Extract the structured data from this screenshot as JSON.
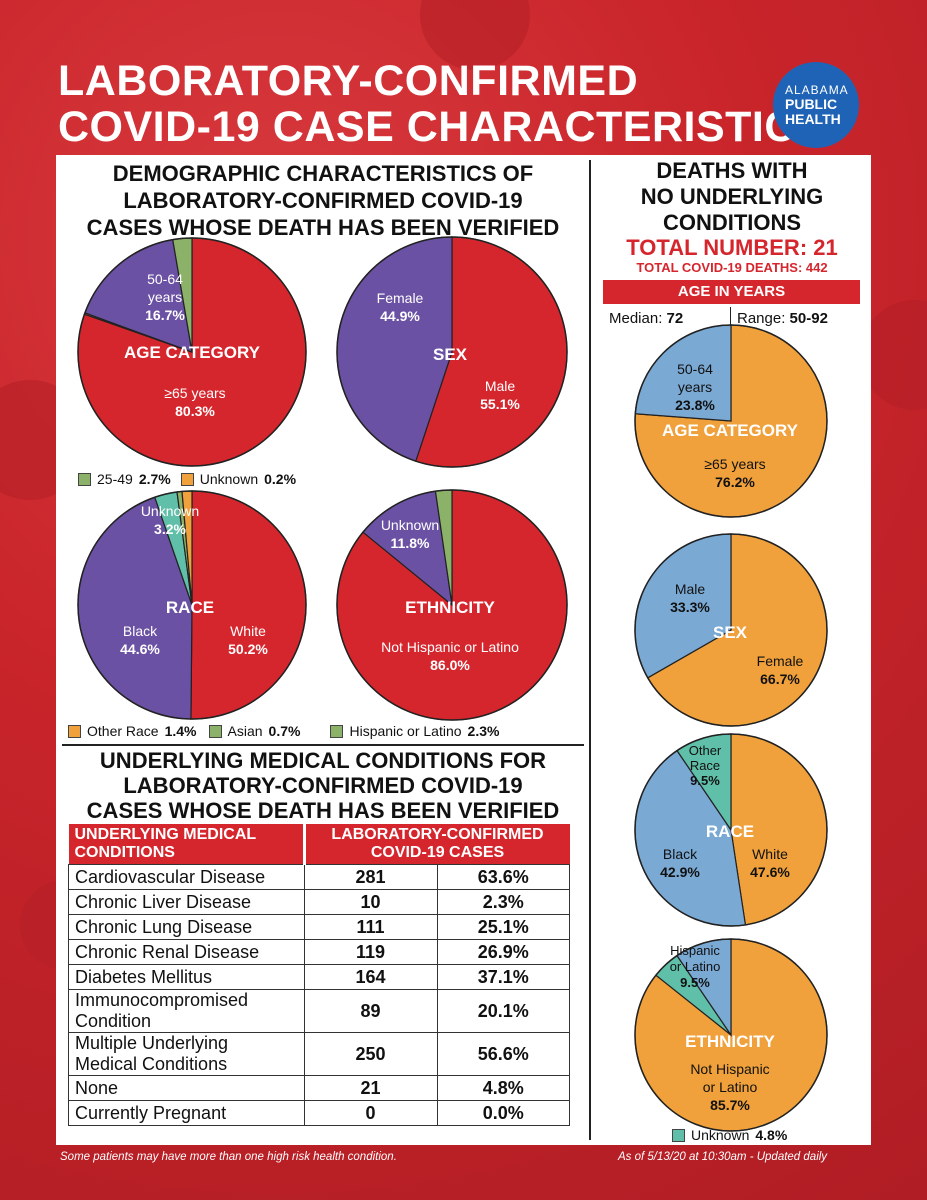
{
  "title": {
    "line1": "LABORATORY-CONFIRMED",
    "line2": "COVID-19 CASE CHARACTERISTICS"
  },
  "logo": {
    "line1": "ALABAMA",
    "line2": "PUBLIC",
    "line3": "HEALTH"
  },
  "left_heading": [
    "DEMOGRAPHIC CHARACTERISTICS OF",
    "LABORATORY-CONFIRMED COVID-19",
    "CASES WHOSE DEATH HAS BEEN VERIFIED"
  ],
  "right_heading": [
    "DEATHS WITH",
    "NO UNDERLYING",
    "CONDITIONS"
  ],
  "right_total": "TOTAL NUMBER: 21",
  "right_subtotal": "TOTAL COVID-19 DEATHS: 442",
  "age_bar": "AGE IN YEARS",
  "median": {
    "label": "Median:",
    "value": "72"
  },
  "range": {
    "label": "Range:",
    "value": "50-92"
  },
  "colors": {
    "red": "#d6262d",
    "purple": "#6a51a3",
    "green": "#8cb26a",
    "orange": "#f0a13b",
    "blue": "#7aa9d4",
    "teal": "#5fbfa8"
  },
  "chart_data": [
    {
      "type": "pie",
      "title": "AGE CATEGORY",
      "slices": [
        {
          "label": "≥65 years",
          "value": 80.3,
          "text": "80.3%"
        },
        {
          "label": "Unknown",
          "value": 0.2,
          "text": "0.2%"
        },
        {
          "label": "50-64 years",
          "value": 16.7,
          "text": "16.7%"
        },
        {
          "label": "25-49",
          "value": 2.7,
          "text": "2.7%"
        }
      ]
    },
    {
      "type": "pie",
      "title": "SEX",
      "slices": [
        {
          "label": "Male",
          "value": 55.1,
          "text": "55.1%"
        },
        {
          "label": "Female",
          "value": 44.9,
          "text": "44.9%"
        }
      ]
    },
    {
      "type": "pie",
      "title": "RACE",
      "slices": [
        {
          "label": "White",
          "value": 50.2,
          "text": "50.2%"
        },
        {
          "label": "Black",
          "value": 44.6,
          "text": "44.6%"
        },
        {
          "label": "Unknown",
          "value": 3.2,
          "text": "3.2%"
        },
        {
          "label": "Asian",
          "value": 0.7,
          "text": "0.7%"
        },
        {
          "label": "Other Race",
          "value": 1.4,
          "text": "1.4%"
        }
      ]
    },
    {
      "type": "pie",
      "title": "ETHNICITY",
      "slices": [
        {
          "label": "Not Hispanic or Latino",
          "value": 86.0,
          "text": "86.0%"
        },
        {
          "label": "Unknown",
          "value": 11.8,
          "text": "11.8%"
        },
        {
          "label": "Hispanic or Latino",
          "value": 2.3,
          "text": "2.3%"
        }
      ]
    },
    {
      "type": "pie",
      "title": "AGE CATEGORY",
      "group": "no underlying conditions",
      "slices": [
        {
          "label": "≥65 years",
          "value": 76.2,
          "text": "76.2%"
        },
        {
          "label": "50-64 years",
          "value": 23.8,
          "text": "23.8%"
        }
      ]
    },
    {
      "type": "pie",
      "title": "SEX",
      "group": "no underlying conditions",
      "slices": [
        {
          "label": "Female",
          "value": 66.7,
          "text": "66.7%"
        },
        {
          "label": "Male",
          "value": 33.3,
          "text": "33.3%"
        }
      ]
    },
    {
      "type": "pie",
      "title": "RACE",
      "group": "no underlying conditions",
      "slices": [
        {
          "label": "White",
          "value": 47.6,
          "text": "47.6%"
        },
        {
          "label": "Black",
          "value": 42.9,
          "text": "42.9%"
        },
        {
          "label": "Other Race",
          "value": 9.5,
          "text": "9.5%"
        }
      ]
    },
    {
      "type": "pie",
      "title": "ETHNICITY",
      "group": "no underlying conditions",
      "slices": [
        {
          "label": "Not Hispanic or Latino",
          "value": 85.7,
          "text": "85.7%"
        },
        {
          "label": "Unknown",
          "value": 4.8,
          "text": "4.8%"
        },
        {
          "label": "Hispanic or Latino",
          "value": 9.5,
          "text": "9.5%"
        }
      ]
    },
    {
      "type": "table",
      "title": "UNDERLYING MEDICAL CONDITIONS FOR LABORATORY-CONFIRMED COVID-19 CASES WHOSE DEATH HAS BEEN VERIFIED",
      "columns": [
        "UNDERLYING MEDICAL CONDITIONS",
        "LABORATORY-CONFIRMED COVID-19 CASES"
      ],
      "rows": [
        {
          "condition": "Cardiovascular Disease",
          "count": "281",
          "pct": "63.6%"
        },
        {
          "condition": "Chronic Liver Disease",
          "count": "10",
          "pct": "2.3%"
        },
        {
          "condition": "Chronic Lung Disease",
          "count": "111",
          "pct": "25.1%"
        },
        {
          "condition": "Chronic Renal Disease",
          "count": "119",
          "pct": "26.9%"
        },
        {
          "condition": "Diabetes Mellitus",
          "count": "164",
          "pct": "37.1%"
        },
        {
          "condition": "Immunocompromised Condition",
          "count": "89",
          "pct": "20.1%"
        },
        {
          "condition": "Multiple Underlying Medical Conditions",
          "count": "250",
          "pct": "56.6%"
        },
        {
          "condition": "None",
          "count": "21",
          "pct": "4.8%"
        },
        {
          "condition": "Currently Pregnant",
          "count": "0",
          "pct": "0.0%"
        }
      ]
    }
  ],
  "labels": {
    "age": {
      "cat": "AGE CATEGORY",
      "a": "50-64",
      "b": "years",
      "c": "16.7%",
      "d": "≥65 years",
      "e": "80.3%"
    },
    "age_legend": {
      "a": "25-49",
      "b": "2.7%",
      "c": "Unknown",
      "d": "0.2%"
    },
    "sex": {
      "cat": "SEX",
      "a": "Female",
      "b": "44.9%",
      "c": "Male",
      "d": "55.1%"
    },
    "race": {
      "cat": "RACE",
      "a": "Unknown",
      "b": "3.2%",
      "c": "Black",
      "d": "44.6%",
      "e": "White",
      "f": "50.2%"
    },
    "eth": {
      "cat": "ETHNICITY",
      "a": "Unknown",
      "b": "11.8%",
      "c": "Not Hispanic or Latino",
      "d": "86.0%"
    },
    "race_legend": {
      "a": "Other Race",
      "b": "1.4%",
      "c": "Asian",
      "d": "0.7%",
      "e": "Hispanic or Latino",
      "f": "2.3%"
    },
    "r_age": {
      "cat": "AGE CATEGORY",
      "a": "50-64",
      "b": "years",
      "c": "23.8%",
      "d": "≥65 years",
      "e": "76.2%"
    },
    "r_sex": {
      "cat": "SEX",
      "a": "Male",
      "b": "33.3%",
      "c": "Female",
      "d": "66.7%"
    },
    "r_race": {
      "cat": "RACE",
      "a": "Other",
      "b": "Race",
      "c": "9.5%",
      "d": "Black",
      "e": "42.9%",
      "f": "White",
      "g": "47.6%"
    },
    "r_eth": {
      "cat": "ETHNICITY",
      "a": "Hispanic",
      "b": "or Latino",
      "c": "9.5%",
      "d": "Not Hispanic",
      "e": "or Latino",
      "f": "85.7%"
    },
    "r_eth_legend": {
      "a": "Unknown",
      "b": "4.8%"
    }
  },
  "table_heading": [
    "UNDERLYING MEDICAL CONDITIONS FOR",
    "LABORATORY-CONFIRMED COVID-19",
    "CASES WHOSE DEATH HAS BEEN VERIFIED"
  ],
  "table_header": {
    "c1a": "UNDERLYING MEDICAL",
    "c1b": "CONDITIONS",
    "c2a": "LABORATORY-CONFIRMED",
    "c2b": "COVID-19 CASES"
  },
  "table_rows": [
    {
      "a": "Cardiovascular Disease",
      "b": "",
      "count": "281",
      "pct": "63.6%"
    },
    {
      "a": "Chronic Liver Disease",
      "b": "",
      "count": "10",
      "pct": "2.3%"
    },
    {
      "a": "Chronic Lung Disease",
      "b": "",
      "count": "111",
      "pct": "25.1%"
    },
    {
      "a": "Chronic Renal Disease",
      "b": "",
      "count": "119",
      "pct": "26.9%"
    },
    {
      "a": "Diabetes Mellitus",
      "b": "",
      "count": "164",
      "pct": "37.1%"
    },
    {
      "a": "Immunocompromised",
      "b": "Condition",
      "count": "89",
      "pct": "20.1%"
    },
    {
      "a": "Multiple Underlying",
      "b": "Medical Conditions",
      "count": "250",
      "pct": "56.6%"
    },
    {
      "a": "None",
      "b": "",
      "count": "21",
      "pct": "4.8%"
    },
    {
      "a": "Currently Pregnant",
      "b": "",
      "count": "0",
      "pct": "0.0%"
    }
  ],
  "footer": {
    "left": "Some patients may have more than one high risk health condition.",
    "right": "As of 5/13/20 at 10:30am - Updated daily"
  }
}
